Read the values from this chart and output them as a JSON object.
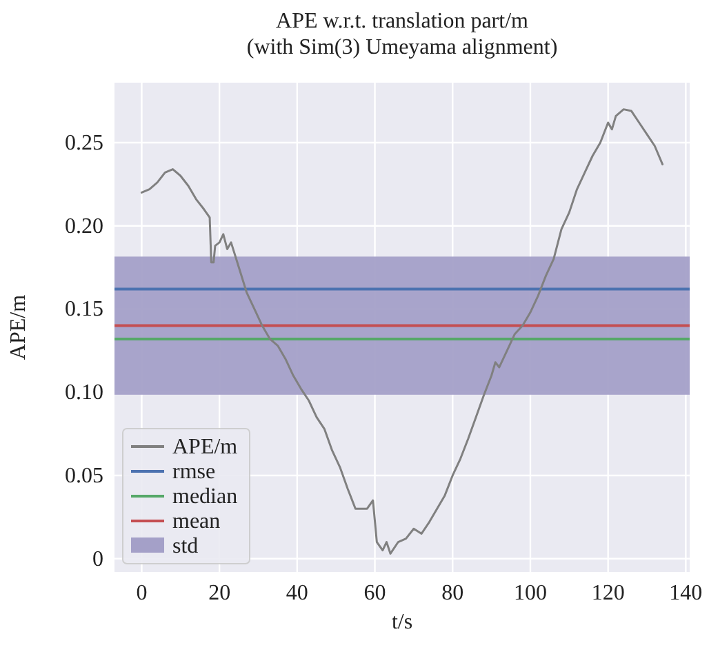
{
  "chart_data": {
    "type": "line",
    "title": "APE w.r.t. translation part/m\n(with Sim(3) Umeyama alignment)",
    "xlabel": "t/s",
    "ylabel": "APE/m",
    "xlim": [
      -7,
      141
    ],
    "xticks": [
      0,
      20,
      40,
      60,
      80,
      100,
      120,
      140
    ],
    "ylim": [
      -0.008,
      0.286
    ],
    "yticks": [
      0,
      0.05,
      {
        "value": 0.1,
        "label": "0.10"
      },
      0.15,
      {
        "value": 0.2,
        "label": "0.20"
      },
      0.25
    ],
    "grid": true,
    "legend": "bottom left",
    "line_style": "solid",
    "marker": "none",
    "series": [
      {
        "name": "APE/m",
        "color": "#808080",
        "x": [
          0,
          2,
          4,
          6,
          8,
          10,
          12,
          14,
          16,
          17.5,
          17.9,
          18.5,
          18.9,
          20,
          21,
          22,
          23,
          25,
          27,
          29,
          31,
          33,
          35,
          37,
          39,
          41,
          43,
          45,
          47,
          49,
          51,
          53,
          55,
          58,
          59.5,
          60.5,
          62,
          63,
          64,
          66,
          68,
          70,
          72,
          74,
          76,
          78,
          80,
          82,
          84,
          86,
          88,
          90,
          91,
          92,
          94,
          96,
          98,
          100,
          102,
          104,
          106,
          108,
          110,
          112,
          114,
          116,
          118,
          120,
          121,
          122,
          124,
          126,
          128,
          130,
          132,
          134
        ],
        "values": [
          0.22,
          0.222,
          0.226,
          0.232,
          0.234,
          0.23,
          0.224,
          0.216,
          0.21,
          0.205,
          0.178,
          0.178,
          0.188,
          0.19,
          0.195,
          0.186,
          0.19,
          0.175,
          0.16,
          0.15,
          0.14,
          0.132,
          0.128,
          0.12,
          0.11,
          0.102,
          0.095,
          0.085,
          0.078,
          0.065,
          0.055,
          0.042,
          0.03,
          0.03,
          0.035,
          0.01,
          0.005,
          0.01,
          0.003,
          0.01,
          0.012,
          0.018,
          0.015,
          0.022,
          0.03,
          0.038,
          0.05,
          0.06,
          0.072,
          0.085,
          0.098,
          0.11,
          0.118,
          0.115,
          0.125,
          0.135,
          0.14,
          0.148,
          0.158,
          0.17,
          0.18,
          0.198,
          0.208,
          0.222,
          0.232,
          0.242,
          0.25,
          0.262,
          0.258,
          0.266,
          0.27,
          0.269,
          0.262,
          0.255,
          0.248,
          0.237
        ]
      }
    ],
    "ref_lines": [
      {
        "axis": "y",
        "value": 0.162,
        "label": "rmse",
        "color": "#4c72b0"
      },
      {
        "axis": "y",
        "value": 0.132,
        "label": "median",
        "color": "#55a868"
      },
      {
        "axis": "y",
        "value": 0.14,
        "label": "mean",
        "color": "#c44e52"
      }
    ],
    "bands": [
      {
        "axis": "y",
        "from": 0.0985,
        "to": 0.1815,
        "label": "std",
        "color": "#a4a0c8"
      }
    ]
  }
}
